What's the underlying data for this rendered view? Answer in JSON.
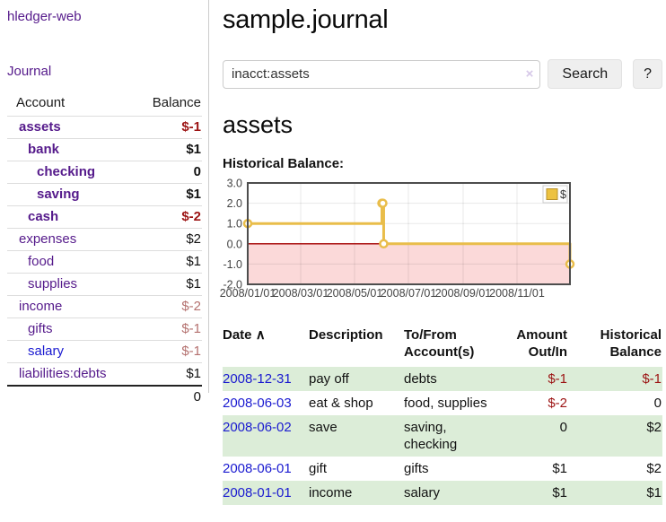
{
  "sidebar": {
    "app_title": "hledger-web",
    "nav": {
      "journal": "Journal"
    },
    "accounts": {
      "col_account": "Account",
      "col_balance": "Balance",
      "rows": [
        {
          "name": "assets",
          "depth": 1,
          "bold": true,
          "color": "purple",
          "balance": "$-1"
        },
        {
          "name": "bank",
          "depth": 2,
          "bold": true,
          "color": "purple",
          "balance": "$1"
        },
        {
          "name": "checking",
          "depth": 3,
          "bold": true,
          "color": "purple",
          "balance": "0"
        },
        {
          "name": "saving",
          "depth": 3,
          "bold": true,
          "color": "purple",
          "balance": "$1"
        },
        {
          "name": "cash",
          "depth": 2,
          "bold": true,
          "color": "purple",
          "balance": "$-2"
        },
        {
          "name": "expenses",
          "depth": 1,
          "bold": false,
          "color": "purple",
          "balance": "$2"
        },
        {
          "name": "food",
          "depth": 2,
          "bold": false,
          "color": "purple",
          "balance": "$1"
        },
        {
          "name": "supplies",
          "depth": 2,
          "bold": false,
          "color": "purple",
          "balance": "$1"
        },
        {
          "name": "income",
          "depth": 1,
          "bold": false,
          "color": "purple",
          "balance": "$-2"
        },
        {
          "name": "gifts",
          "depth": 2,
          "bold": false,
          "color": "purple",
          "balance": "$-1"
        },
        {
          "name": "salary",
          "depth": 2,
          "bold": false,
          "color": "blue",
          "balance": "$-1"
        },
        {
          "name": "liabilities:debts",
          "depth": 1,
          "bold": false,
          "color": "purple",
          "balance": "$1"
        }
      ],
      "total": "0"
    }
  },
  "main": {
    "title": "sample.journal",
    "search": {
      "value": "inacct:assets",
      "clear_icon": "×",
      "button": "Search",
      "help": "?"
    },
    "account_heading": "assets",
    "chart_label": "Historical Balance:"
  },
  "chart_data": {
    "type": "line",
    "step": true,
    "title": "Historical Balance",
    "series": [
      {
        "name": "$",
        "color": "#e9bd4a",
        "fill_color": "#edc240",
        "points": [
          [
            "2008-01-01",
            1
          ],
          [
            "2008-06-01",
            2
          ],
          [
            "2008-06-02",
            2
          ],
          [
            "2008-06-03",
            0
          ],
          [
            "2008-12-31",
            -1
          ]
        ]
      }
    ],
    "x_ticks": [
      "2008/01/01",
      "2008/03/01",
      "2008/05/01",
      "2008/07/01",
      "2008/09/01",
      "2008/11/01"
    ],
    "y_ticks": [
      3.0,
      2.0,
      1.0,
      0.0,
      -1.0,
      -2.0
    ],
    "ylim": [
      -2,
      3
    ],
    "x_range_days": 365,
    "grid": true,
    "legend_position": "top-right",
    "legend_label": "$",
    "negative_region_color": "#fbd9d9",
    "zero_line_color": "#a40000",
    "border_color": "#4d4d4d"
  },
  "register": {
    "col_date": "Date",
    "sort_icon": "∧",
    "col_description": "Description",
    "col_accounts": "To/From Account(s)",
    "col_amount": "Amount Out/In",
    "col_balance": "Historical Balance",
    "rows": [
      {
        "date": "2008-12-31",
        "description": "pay off",
        "accounts": "debts",
        "amount": "$-1",
        "balance": "$-1"
      },
      {
        "date": "2008-06-03",
        "description": "eat & shop",
        "accounts": "food, supplies",
        "amount": "$-2",
        "balance": "0"
      },
      {
        "date": "2008-06-02",
        "description": "save",
        "accounts": "saving, checking",
        "amount": "0",
        "balance": "$2"
      },
      {
        "date": "2008-06-01",
        "description": "gift",
        "accounts": "gifts",
        "amount": "$1",
        "balance": "$2"
      },
      {
        "date": "2008-01-01",
        "description": "income",
        "accounts": "salary",
        "amount": "$1",
        "balance": "$1"
      }
    ]
  }
}
